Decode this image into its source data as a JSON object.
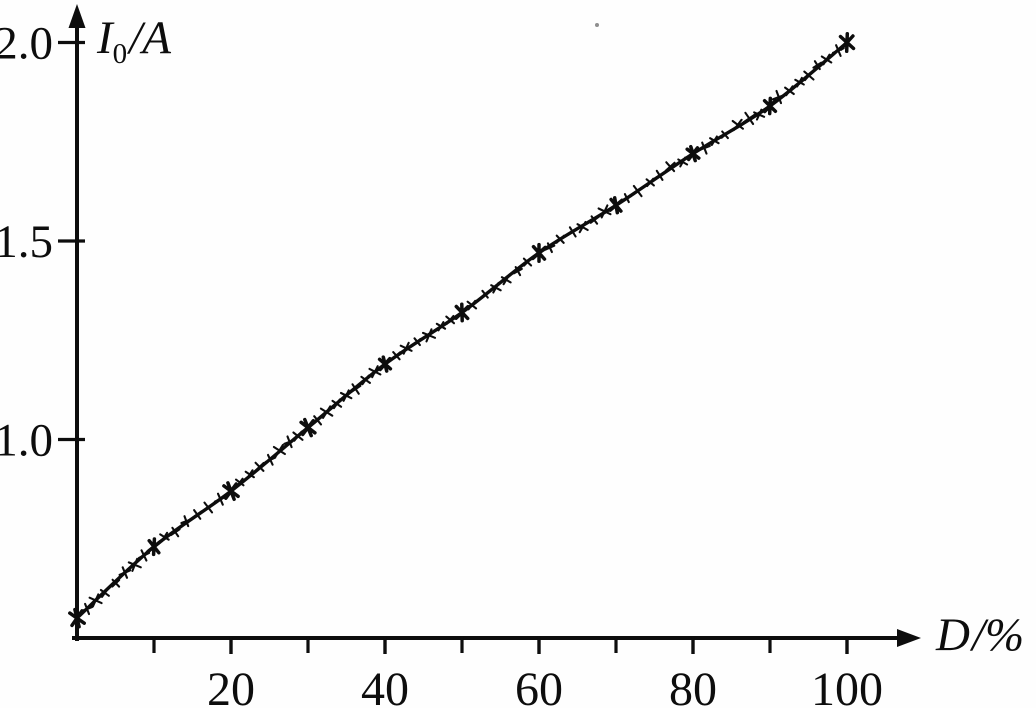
{
  "figure": {
    "background": "#fefefe",
    "ink_color": "#0d0d0d"
  },
  "chart_data": {
    "type": "line",
    "title": "",
    "appearance": "scanned black-and-white curve of x markers with fitted line",
    "x_label": {
      "symbol": "D",
      "unit": "/%"
    },
    "y_label": {
      "symbol": "I",
      "subscript": "0",
      "unit": "/A"
    },
    "x": [
      0,
      10,
      20,
      30,
      40,
      50,
      60,
      70,
      80,
      90,
      100
    ],
    "y": [
      0.55,
      0.73,
      0.87,
      1.03,
      1.19,
      1.32,
      1.47,
      1.59,
      1.72,
      1.84,
      2.0
    ],
    "x_ticks_major": [
      {
        "value": 20,
        "label": "20"
      },
      {
        "value": 40,
        "label": "40"
      },
      {
        "value": 60,
        "label": "60"
      },
      {
        "value": 80,
        "label": "80"
      },
      {
        "value": 100,
        "label": "100"
      }
    ],
    "x_ticks_minor": [
      10,
      30,
      50,
      70,
      90
    ],
    "y_ticks_major": [
      {
        "value": 1.0,
        "label": "1.0"
      },
      {
        "value": 1.5,
        "label": "1.5"
      },
      {
        "value": 2.0,
        "label": "2.0"
      }
    ],
    "xlim": [
      0,
      107
    ],
    "ylim": [
      0.5,
      2.07
    ],
    "grid": false,
    "legend": false,
    "marker": "x",
    "line_style": "solid"
  }
}
